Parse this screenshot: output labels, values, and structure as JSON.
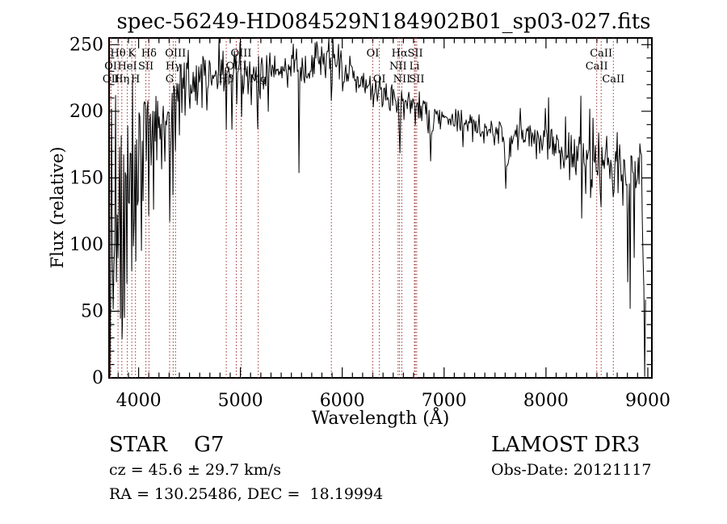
{
  "title": "spec-56249-HD084529N184902B01_sp03-027.fits",
  "footer": {
    "class_line": "STAR    G7",
    "cz_line": "cz = 45.6 ± 29.7 km/s",
    "radec_line": "RA = 130.25486, DEC =  18.19994",
    "survey": "LAMOST DR3",
    "obs_date": "Obs-Date: 20121117"
  },
  "chart_data": {
    "type": "line",
    "title": "spec-56249-HD084529N184902B01_sp03-027.fits",
    "xlabel": "Wavelength (Å)",
    "ylabel": "Flux (relative)",
    "xlim": [
      3710,
      9040
    ],
    "ylim": [
      0,
      255
    ],
    "xticks": [
      4000,
      5000,
      6000,
      7000,
      8000,
      9000
    ],
    "yticks": [
      0,
      50,
      100,
      150,
      200,
      250
    ],
    "x_minor_step": 100,
    "y_minor_step": 10,
    "grid": false,
    "legend": "none",
    "series_color": "#000000",
    "line_marker_color": "#a03232",
    "spectral_lines": {
      "rows": [
        {
          "row": 1,
          "lines": [
            {
              "label": "Hθ",
              "wavelength": 3798
            },
            {
              "label": "K",
              "wavelength": 3934
            },
            {
              "label": "Hδ",
              "wavelength": 4102
            },
            {
              "label": "OIII",
              "wavelength": 4363
            },
            {
              "label": "OIII",
              "wavelength": 5007
            },
            {
              "label": "OI",
              "wavelength": 6300
            },
            {
              "label": "Hα",
              "wavelength": 6563
            },
            {
              "label": "SII",
              "wavelength": 6717
            },
            {
              "label": "CaII",
              "wavelength": 8542
            }
          ]
        },
        {
          "row": 2,
          "lines": [
            {
              "label": "OI",
              "wavelength": 3727
            },
            {
              "label": "HeI",
              "wavelength": 3889
            },
            {
              "label": "SII",
              "wavelength": 4072
            },
            {
              "label": "Hγ",
              "wavelength": 4340
            },
            {
              "label": "OIII",
              "wavelength": 4959
            },
            {
              "label": "NII",
              "wavelength": 6548
            },
            {
              "label": "Li",
              "wavelength": 6708
            },
            {
              "label": "CaII",
              "wavelength": 8498
            }
          ]
        },
        {
          "row": 3,
          "lines": [
            {
              "label": "OII",
              "wavelength": 3729
            },
            {
              "label": "Hη",
              "wavelength": 3835
            },
            {
              "label": "H",
              "wavelength": 3969
            },
            {
              "label": "G",
              "wavelength": 4305
            },
            {
              "label": "Hβ",
              "wavelength": 4861
            },
            {
              "label": "Mg",
              "wavelength": 5175
            },
            {
              "label": "OI",
              "wavelength": 6364
            },
            {
              "label": "NII",
              "wavelength": 6584
            },
            {
              "label": "SII",
              "wavelength": 6731
            },
            {
              "label": "CaII",
              "wavelength": 8662
            }
          ]
        }
      ],
      "unlabeled": [
        5893
      ]
    },
    "spectrum": {
      "seed": 20121117,
      "end_wavelength": 8985,
      "envelope": [
        [
          3711,
          160
        ],
        [
          3730,
          178
        ],
        [
          3760,
          188
        ],
        [
          3800,
          196
        ],
        [
          3850,
          193
        ],
        [
          3900,
          191
        ],
        [
          3950,
          190
        ],
        [
          4000,
          190
        ],
        [
          4050,
          192
        ],
        [
          4100,
          194
        ],
        [
          4150,
          197
        ],
        [
          4200,
          200
        ],
        [
          4250,
          200
        ],
        [
          4305,
          198
        ],
        [
          4360,
          207
        ],
        [
          4400,
          213
        ],
        [
          4450,
          219
        ],
        [
          4500,
          222
        ],
        [
          4550,
          224
        ],
        [
          4600,
          225
        ],
        [
          4650,
          227
        ],
        [
          4700,
          229
        ],
        [
          4750,
          228
        ],
        [
          4800,
          228
        ],
        [
          4861,
          226
        ],
        [
          4900,
          229
        ],
        [
          4950,
          228
        ],
        [
          5000,
          228
        ],
        [
          5050,
          227
        ],
        [
          5100,
          228
        ],
        [
          5175,
          226
        ],
        [
          5250,
          230
        ],
        [
          5300,
          231
        ],
        [
          5350,
          232
        ],
        [
          5400,
          232
        ],
        [
          5450,
          232
        ],
        [
          5500,
          233
        ],
        [
          5550,
          232
        ],
        [
          5600,
          231
        ],
        [
          5650,
          233
        ],
        [
          5700,
          235
        ],
        [
          5750,
          237
        ],
        [
          5800,
          239
        ],
        [
          5850,
          240
        ],
        [
          5900,
          239
        ],
        [
          5950,
          235
        ],
        [
          6000,
          230
        ],
        [
          6050,
          227
        ],
        [
          6100,
          225
        ],
        [
          6150,
          223
        ],
        [
          6200,
          221
        ],
        [
          6250,
          219
        ],
        [
          6300,
          217
        ],
        [
          6350,
          215
        ],
        [
          6400,
          214
        ],
        [
          6450,
          212
        ],
        [
          6500,
          211
        ],
        [
          6563,
          209
        ],
        [
          6600,
          208
        ],
        [
          6650,
          206
        ],
        [
          6700,
          205
        ],
        [
          6750,
          203
        ],
        [
          6800,
          202
        ],
        [
          6850,
          200
        ],
        [
          6900,
          198
        ],
        [
          6950,
          197
        ],
        [
          7000,
          196
        ],
        [
          7100,
          193
        ],
        [
          7200,
          190
        ],
        [
          7300,
          188
        ],
        [
          7400,
          186
        ],
        [
          7500,
          184
        ],
        [
          7600,
          182
        ],
        [
          7700,
          180
        ],
        [
          7800,
          178
        ],
        [
          7900,
          176
        ],
        [
          8000,
          174
        ],
        [
          8100,
          172
        ],
        [
          8200,
          169
        ],
        [
          8300,
          167
        ],
        [
          8400,
          164
        ],
        [
          8500,
          161
        ],
        [
          8600,
          158
        ],
        [
          8700,
          155
        ],
        [
          8800,
          152
        ],
        [
          8900,
          151
        ],
        [
          8940,
          150
        ],
        [
          8958,
          120
        ],
        [
          8966,
          15
        ],
        [
          8975,
          40
        ],
        [
          8985,
          50
        ]
      ],
      "noise_regions": [
        [
          3711,
          3760,
          32
        ],
        [
          3760,
          4000,
          26
        ],
        [
          4000,
          4200,
          13
        ],
        [
          4200,
          4500,
          11
        ],
        [
          4500,
          5200,
          10
        ],
        [
          5200,
          6100,
          8
        ],
        [
          6100,
          7000,
          6
        ],
        [
          7000,
          7800,
          5
        ],
        [
          7800,
          8300,
          7
        ],
        [
          8300,
          8700,
          11
        ],
        [
          8700,
          8990,
          13
        ]
      ],
      "absorption_features": [
        [
          4305,
          15,
          12
        ],
        [
          5175,
          12,
          15
        ],
        [
          6563,
          40,
          4
        ],
        [
          6875,
          16,
          12
        ],
        [
          7615,
          20,
          18
        ],
        [
          8498,
          25,
          5
        ],
        [
          8542,
          30,
          5
        ],
        [
          8662,
          28,
          5
        ]
      ],
      "down_spikes": [
        [
          3715,
          -165
        ],
        [
          3722,
          -120
        ],
        [
          3730,
          -160
        ],
        [
          3742,
          -80
        ],
        [
          3750,
          -130
        ],
        [
          3762,
          -60
        ],
        [
          3770,
          -110
        ],
        [
          3782,
          -140
        ],
        [
          3790,
          -70
        ],
        [
          3798,
          -120
        ],
        [
          3810,
          -90
        ],
        [
          3820,
          -150
        ],
        [
          3835,
          -170
        ],
        [
          3848,
          -100
        ],
        [
          3860,
          -130
        ],
        [
          3875,
          -60
        ],
        [
          3889,
          -145
        ],
        [
          3900,
          -80
        ],
        [
          3912,
          -110
        ],
        [
          3925,
          -60
        ],
        [
          3934,
          -130
        ],
        [
          3946,
          -90
        ],
        [
          3958,
          -70
        ],
        [
          3969,
          -115
        ],
        [
          3985,
          -55
        ],
        [
          4000,
          -80
        ],
        [
          4026,
          -65
        ],
        [
          4045,
          -45
        ],
        [
          4072,
          -60
        ],
        [
          4101,
          -70
        ],
        [
          4120,
          -40
        ],
        [
          4144,
          -50
        ],
        [
          4180,
          -35
        ],
        [
          4226,
          -55
        ],
        [
          4260,
          -40
        ],
        [
          4305,
          -45
        ],
        [
          4340,
          -55
        ],
        [
          4363,
          -35
        ],
        [
          4405,
          -35
        ],
        [
          4455,
          -30
        ],
        [
          4530,
          -25
        ],
        [
          4668,
          -25
        ],
        [
          4861,
          -40
        ],
        [
          4920,
          -25
        ],
        [
          5015,
          -25
        ],
        [
          5110,
          -25
        ],
        [
          5167,
          -30
        ],
        [
          5270,
          -30
        ],
        [
          5577,
          -70
        ],
        [
          5893,
          -32
        ],
        [
          6563,
          -15
        ],
        [
          6870,
          -15
        ],
        [
          7185,
          -20
        ],
        [
          7605,
          -18
        ],
        [
          7650,
          -20
        ],
        [
          8230,
          -25
        ],
        [
          8350,
          -30
        ],
        [
          8806,
          -80
        ],
        [
          8824,
          -95
        ],
        [
          8870,
          -50
        ],
        [
          8950,
          -40
        ]
      ],
      "up_spikes": [
        [
          4470,
          18
        ],
        [
          4630,
          20
        ],
        [
          4790,
          15
        ],
        [
          5020,
          15
        ],
        [
          5210,
          15
        ],
        [
          5440,
          14
        ],
        [
          5870,
          12
        ],
        [
          5905,
          14
        ],
        [
          6300,
          12
        ],
        [
          7750,
          15
        ],
        [
          7993,
          20
        ],
        [
          8025,
          18
        ],
        [
          8190,
          25
        ],
        [
          8280,
          25
        ],
        [
          8344,
          32
        ],
        [
          8430,
          38
        ],
        [
          8465,
          28
        ],
        [
          8504,
          22
        ],
        [
          8548,
          20
        ],
        [
          8590,
          18
        ],
        [
          8700,
          30
        ],
        [
          8745,
          22
        ],
        [
          8920,
          25
        ]
      ]
    }
  }
}
